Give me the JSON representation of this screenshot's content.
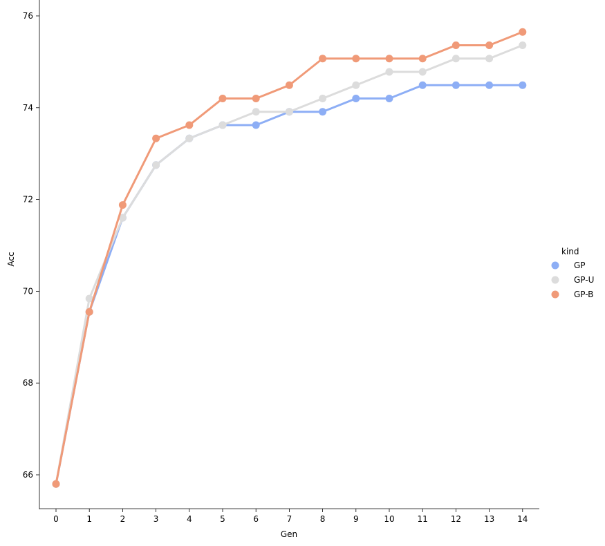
{
  "chart_data": {
    "type": "line",
    "xlabel": "Gen",
    "ylabel": "Acc",
    "x": [
      0,
      1,
      2,
      3,
      4,
      5,
      6,
      7,
      8,
      9,
      10,
      11,
      12,
      13,
      14
    ],
    "xticks": [
      "0",
      "1",
      "2",
      "3",
      "4",
      "5",
      "6",
      "7",
      "8",
      "9",
      "10",
      "11",
      "12",
      "13",
      "14"
    ],
    "yticks": [
      "66",
      "68",
      "70",
      "72",
      "74",
      "76"
    ],
    "ylim": [
      65.25,
      76.5
    ],
    "legend": {
      "title": "kind",
      "placement": "right"
    },
    "grid": false,
    "series": [
      {
        "name": "GP",
        "color": "#8daef5",
        "values": [
          65.8,
          69.55,
          71.6,
          72.75,
          73.33,
          73.62,
          73.62,
          73.91,
          73.91,
          74.2,
          74.2,
          74.49,
          74.49,
          74.49,
          74.49
        ]
      },
      {
        "name": "GP-U",
        "color": "#dcdcdc",
        "values": [
          65.8,
          69.84,
          71.6,
          72.75,
          73.33,
          73.62,
          73.91,
          73.91,
          74.2,
          74.49,
          74.78,
          74.78,
          75.07,
          75.07,
          75.36
        ]
      },
      {
        "name": "GP-B",
        "color": "#f09a78",
        "values": [
          65.8,
          69.55,
          71.88,
          73.33,
          73.62,
          74.2,
          74.2,
          74.49,
          75.07,
          75.07,
          75.07,
          75.07,
          75.36,
          75.36,
          75.65
        ]
      }
    ]
  }
}
